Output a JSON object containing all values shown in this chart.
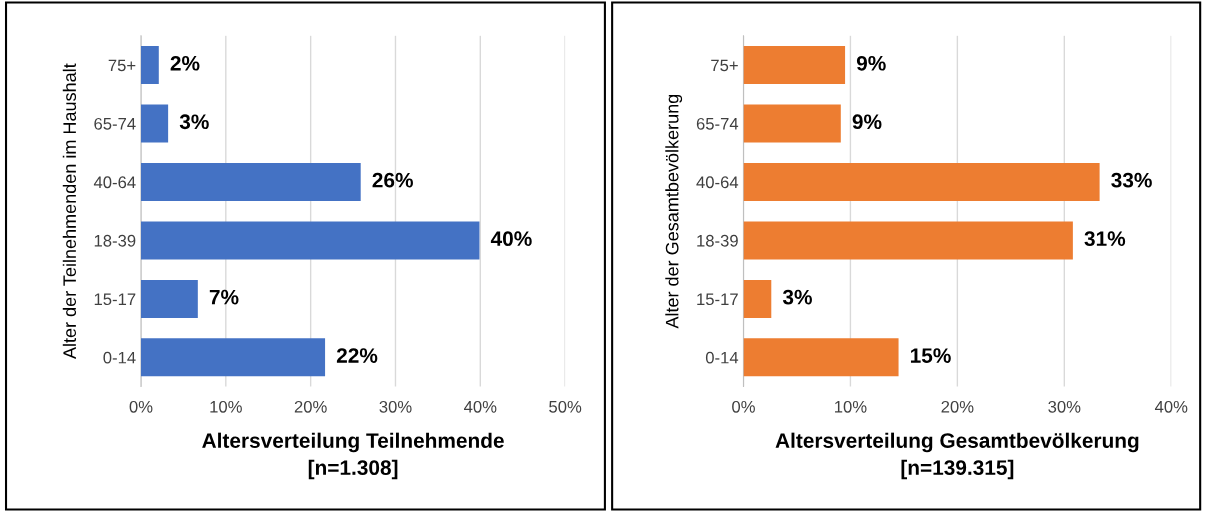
{
  "chart_data": [
    {
      "type": "bar",
      "orientation": "horizontal",
      "categories": [
        "75+",
        "65-74",
        "40-64",
        "18-39",
        "15-17",
        "0-14"
      ],
      "values": [
        2.1,
        3.2,
        25.9,
        39.9,
        6.7,
        21.7
      ],
      "value_labels": [
        "2%",
        "3%",
        "26%",
        "40%",
        "7%",
        "22%"
      ],
      "color": "#4472c4",
      "xlim": [
        0,
        50
      ],
      "xticks": [
        {
          "value": 0,
          "label": "0%"
        },
        {
          "value": 10,
          "label": "10%"
        },
        {
          "value": 20,
          "label": "20%"
        },
        {
          "value": 30,
          "label": "30%"
        },
        {
          "value": 40,
          "label": "40%"
        },
        {
          "value": 50,
          "label": "50%"
        }
      ],
      "xlabel": "Altersverteilung Teilnehmende\n[n=1.308]",
      "ylabel": "Alter der Teilnehmenden im Haushalt",
      "grid": "x",
      "legend": false
    },
    {
      "type": "bar",
      "orientation": "horizontal",
      "categories": [
        "75+",
        "65-74",
        "40-64",
        "18-39",
        "15-17",
        "0-14"
      ],
      "values": [
        9.5,
        9.1,
        33.3,
        30.8,
        2.6,
        14.5
      ],
      "value_labels": [
        "9%",
        "9%",
        "33%",
        "31%",
        "3%",
        "15%"
      ],
      "color": "#ed7d31",
      "xlim": [
        0,
        40
      ],
      "xticks": [
        {
          "value": 0,
          "label": "0%"
        },
        {
          "value": 10,
          "label": "10%"
        },
        {
          "value": 20,
          "label": "20%"
        },
        {
          "value": 30,
          "label": "30%"
        },
        {
          "value": 40,
          "label": "40%"
        }
      ],
      "xlabel": "Altersverteilung Gesamtbevölkerung\n[n=139.315]",
      "ylabel": "Alter der Gesamtbevölkerung",
      "grid": "x",
      "legend": false
    }
  ]
}
